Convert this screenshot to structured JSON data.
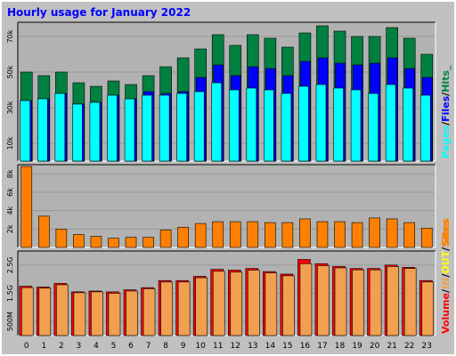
{
  "title": "Hourly usage for January 2022",
  "colors": {
    "frame_bg": "#c0c0c0",
    "plot_bg": "#b2b2b2",
    "grid": "#999999",
    "title": "#0000ff",
    "pages": "#00ffff",
    "files": "#0000ff",
    "hits": "#008040",
    "sites": "#ff8000",
    "volume": "#ff0000",
    "in_volume": "#f0a050",
    "out_volume": "#ffff00"
  },
  "chart_data": [
    {
      "type": "bar",
      "panel": "hits-files-pages",
      "categories": [
        "0",
        "1",
        "2",
        "3",
        "4",
        "5",
        "6",
        "7",
        "8",
        "9",
        "10",
        "11",
        "12",
        "13",
        "14",
        "15",
        "16",
        "17",
        "18",
        "19",
        "20",
        "21",
        "22",
        "23"
      ],
      "ylim": [
        0,
        78000
      ],
      "yticks": [
        "10k",
        "30k",
        "50k",
        "70k"
      ],
      "ytick_values": [
        10000,
        30000,
        50000,
        70000
      ],
      "side_label": [
        "Pages",
        "/",
        "Files",
        "/",
        "Hits_"
      ],
      "series": [
        {
          "name": "Hits",
          "color": "#008040",
          "values": [
            50000,
            48000,
            50000,
            44000,
            42000,
            45000,
            43000,
            48000,
            53000,
            58000,
            63000,
            71000,
            65000,
            71000,
            69000,
            64000,
            72000,
            76000,
            73000,
            70000,
            70000,
            75000,
            69000,
            60000
          ]
        },
        {
          "name": "Files",
          "color": "#0000ff",
          "values": [
            34000,
            35000,
            38000,
            32000,
            33000,
            37000,
            35000,
            39000,
            38000,
            39000,
            47000,
            54000,
            48000,
            53000,
            52000,
            48000,
            56000,
            58000,
            55000,
            54000,
            55000,
            58000,
            52000,
            47000
          ]
        },
        {
          "name": "Pages",
          "color": "#00ffff",
          "values": [
            34000,
            35000,
            38000,
            32000,
            33000,
            37000,
            35000,
            37000,
            37000,
            38000,
            39000,
            44000,
            40000,
            41000,
            40000,
            38000,
            42000,
            43000,
            41000,
            40000,
            38000,
            43000,
            41000,
            37000
          ]
        }
      ]
    },
    {
      "type": "bar",
      "panel": "sites",
      "categories": [
        "0",
        "1",
        "2",
        "3",
        "4",
        "5",
        "6",
        "7",
        "8",
        "9",
        "10",
        "11",
        "12",
        "13",
        "14",
        "15",
        "16",
        "17",
        "18",
        "19",
        "20",
        "21",
        "22",
        "23"
      ],
      "ylim": [
        0,
        9000
      ],
      "yticks": [
        "2k",
        "4k",
        "6k",
        "8k"
      ],
      "ytick_values": [
        2000,
        4000,
        6000,
        8000
      ],
      "side_label": [
        "Sites"
      ],
      "series": [
        {
          "name": "Sites",
          "color": "#ff8000",
          "values": [
            8800,
            3400,
            2000,
            1400,
            1200,
            1000,
            1100,
            1100,
            1900,
            2200,
            2600,
            2800,
            2800,
            2800,
            2700,
            2700,
            3100,
            2800,
            2800,
            2700,
            3200,
            3100,
            2700,
            2100
          ]
        }
      ]
    },
    {
      "type": "bar",
      "panel": "volume",
      "categories": [
        "0",
        "1",
        "2",
        "3",
        "4",
        "5",
        "6",
        "7",
        "8",
        "9",
        "10",
        "11",
        "12",
        "13",
        "14",
        "15",
        "16",
        "17",
        "18",
        "19",
        "20",
        "21",
        "22",
        "23"
      ],
      "ylim": [
        0,
        3.0
      ],
      "yticks": [
        "500M",
        "1.5G",
        "2.5G"
      ],
      "ytick_values": [
        0.5,
        1.5,
        2.5
      ],
      "side_label": [
        "Volume",
        "/",
        "IN",
        "/",
        "OUT",
        "/",
        "Sites"
      ],
      "series": [
        {
          "name": "Volume",
          "color": "#ff0000",
          "values": [
            1.75,
            1.72,
            1.85,
            1.55,
            1.58,
            1.55,
            1.62,
            1.7,
            1.95,
            1.95,
            2.1,
            2.35,
            2.32,
            2.38,
            2.27,
            2.18,
            2.7,
            2.55,
            2.45,
            2.38,
            2.38,
            2.5,
            2.42,
            1.95
          ]
        },
        {
          "name": "IN",
          "color": "#f0a050",
          "values": [
            1.7,
            1.68,
            1.8,
            1.52,
            1.55,
            1.5,
            1.58,
            1.66,
            1.9,
            1.9,
            2.05,
            2.28,
            2.25,
            2.32,
            2.22,
            2.12,
            2.55,
            2.48,
            2.4,
            2.33,
            2.33,
            2.45,
            2.38,
            1.9
          ]
        }
      ]
    }
  ]
}
